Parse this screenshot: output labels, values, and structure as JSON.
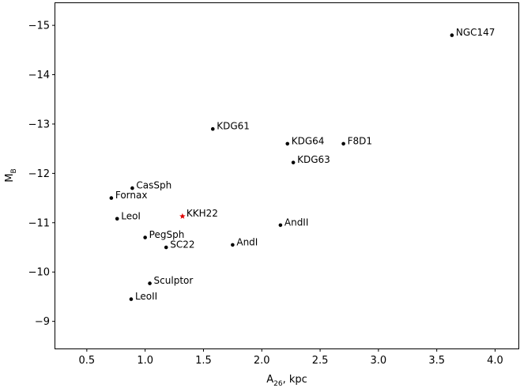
{
  "chart_data": {
    "type": "scatter",
    "title": "",
    "xlabel": "A",
    "xlabel_sub": "26",
    "xlabel_suffix": ", kpc",
    "ylabel": "M",
    "ylabel_sub": "B",
    "xlim": [
      0.23,
      4.2
    ],
    "ylim": [
      -8.45,
      -15.45
    ],
    "x_ticks": [
      {
        "value": 0.5,
        "label": "0.5"
      },
      {
        "value": 1.0,
        "label": "1.0"
      },
      {
        "value": 1.5,
        "label": "1.5"
      },
      {
        "value": 2.0,
        "label": "2.0"
      },
      {
        "value": 2.5,
        "label": "2.5"
      },
      {
        "value": 3.0,
        "label": "3.0"
      },
      {
        "value": 3.5,
        "label": "3.5"
      },
      {
        "value": 4.0,
        "label": "4.0"
      }
    ],
    "y_ticks": [
      {
        "value": -9,
        "label": "−9"
      },
      {
        "value": -10,
        "label": "−10"
      },
      {
        "value": -11,
        "label": "−11"
      },
      {
        "value": -12,
        "label": "−12"
      },
      {
        "value": -13,
        "label": "−13"
      },
      {
        "value": -14,
        "label": "−14"
      },
      {
        "value": -15,
        "label": "−15"
      }
    ],
    "grid": false,
    "marker_color": "#000000",
    "highlight_color": "#e00000",
    "points": [
      {
        "label": "NGC147",
        "x": 3.63,
        "y": -14.8,
        "highlight": false
      },
      {
        "label": "KDG61",
        "x": 1.58,
        "y": -12.9,
        "highlight": false
      },
      {
        "label": "KDG64",
        "x": 2.22,
        "y": -12.6,
        "highlight": false
      },
      {
        "label": "F8D1",
        "x": 2.7,
        "y": -12.6,
        "highlight": false
      },
      {
        "label": "KDG63",
        "x": 2.27,
        "y": -12.22,
        "highlight": false
      },
      {
        "label": "CasSph",
        "x": 0.89,
        "y": -11.7,
        "highlight": false
      },
      {
        "label": "Fornax",
        "x": 0.71,
        "y": -11.5,
        "highlight": false
      },
      {
        "label": "LeoI",
        "x": 0.76,
        "y": -11.08,
        "highlight": false
      },
      {
        "label": "KKH22",
        "x": 1.32,
        "y": -11.13,
        "highlight": true
      },
      {
        "label": "AndII",
        "x": 2.16,
        "y": -10.95,
        "highlight": false
      },
      {
        "label": "PegSph",
        "x": 1.0,
        "y": -10.7,
        "highlight": false
      },
      {
        "label": "SC22",
        "x": 1.18,
        "y": -10.5,
        "highlight": false
      },
      {
        "label": "AndI",
        "x": 1.75,
        "y": -10.55,
        "highlight": false
      },
      {
        "label": "Sculptor",
        "x": 1.04,
        "y": -9.77,
        "highlight": false
      },
      {
        "label": "LeoII",
        "x": 0.88,
        "y": -9.45,
        "highlight": false
      }
    ]
  }
}
